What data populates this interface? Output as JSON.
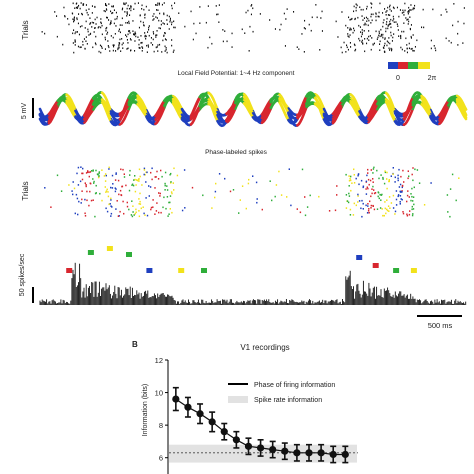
{
  "figure": {
    "ylabel_trials_top": "Trials",
    "lfp_title": "Local Field Potential: 1~4 Hz component",
    "lfp_scale_label": "5 mV",
    "phase_colorbar": {
      "start_label": "0",
      "end_label": "2π",
      "colors": [
        "#1f3fbf",
        "#d8262e",
        "#2fae3a",
        "#f2e21b"
      ]
    },
    "phase_title": "Phase-labeled spikes",
    "ylabel_trials_phase": "Trials",
    "psth_scale_label": "50 spikes/sec",
    "time_scale_label": "500 ms",
    "panel_b_letter": "B"
  },
  "chart_data": [
    {
      "type": "scatter",
      "name": "spike-raster",
      "description_of_marks": "spike raster; dense bursts during two stimulus-response epochs",
      "bursts": [
        {
          "start_ms": 250,
          "end_ms": 1050
        },
        {
          "start_ms": 2400,
          "end_ms": 2950
        }
      ],
      "duration_ms": 3350
    },
    {
      "type": "line",
      "name": "lfp-1-4hz",
      "ylabel": "",
      "phase_colors": [
        "#1f3fbf",
        "#d8262e",
        "#2fae3a",
        "#f2e21b"
      ],
      "cycles": 12
    },
    {
      "type": "bar",
      "name": "psth",
      "markers": [
        {
          "color": "#d8262e",
          "t_ms": 230
        },
        {
          "color": "#2fae3a",
          "t_ms": 400
        },
        {
          "color": "#f2e21b",
          "t_ms": 550
        },
        {
          "color": "#2fae3a",
          "t_ms": 700
        },
        {
          "color": "#1f3fbf",
          "t_ms": 860
        },
        {
          "color": "#f2e21b",
          "t_ms": 1110
        },
        {
          "color": "#2fae3a",
          "t_ms": 1290
        },
        {
          "color": "#1f3fbf",
          "t_ms": 2510
        },
        {
          "color": "#d8262e",
          "t_ms": 2640
        },
        {
          "color": "#2fae3a",
          "t_ms": 2800
        },
        {
          "color": "#f2e21b",
          "t_ms": 2940
        }
      ]
    },
    {
      "type": "line",
      "name": "v1-recordings",
      "title": "V1 recordings",
      "ylabel": "Information (bits)",
      "ylim": [
        5,
        12
      ],
      "yticks": [
        6,
        8,
        10,
        12
      ],
      "x": [
        1,
        2,
        3,
        4,
        5,
        6,
        7,
        8,
        9,
        10,
        11,
        12,
        13,
        14,
        15
      ],
      "series": [
        {
          "name": "Phase of firing information",
          "values": [
            9.6,
            9.1,
            8.7,
            8.2,
            7.6,
            7.1,
            6.7,
            6.6,
            6.5,
            6.4,
            6.3,
            6.3,
            6.3,
            6.2,
            6.2
          ],
          "error": [
            0.7,
            0.6,
            0.6,
            0.6,
            0.5,
            0.5,
            0.5,
            0.5,
            0.5,
            0.5,
            0.5,
            0.5,
            0.5,
            0.5,
            0.5
          ]
        },
        {
          "name": "Spike rate information",
          "band": [
            5.7,
            6.8
          ],
          "mean": 6.3
        }
      ],
      "legend_position": "top-right"
    }
  ]
}
